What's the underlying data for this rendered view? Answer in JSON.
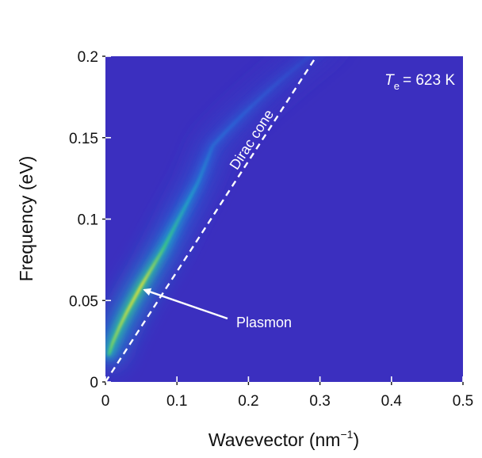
{
  "chart_data": {
    "type": "heatmap",
    "title": "",
    "xlabel": "Wavevector (nm",
    "xlabel_sup": "−1",
    "xlabel_end": ")",
    "ylabel": "Frequency (eV)",
    "xlim": [
      0,
      0.5
    ],
    "ylim": [
      0,
      0.2
    ],
    "x_ticks": [
      0,
      0.1,
      0.2,
      0.3,
      0.4,
      0.5
    ],
    "x_tick_labels": [
      "0",
      "0.1",
      "0.2",
      "0.3",
      "0.4",
      "0.5"
    ],
    "y_ticks": [
      0,
      0.05,
      0.1,
      0.15,
      0.2
    ],
    "y_tick_labels": [
      "0",
      "0.05",
      "0.1",
      "0.15",
      "0.2"
    ],
    "colormap": [
      "#3b2fbf",
      "#2b63d6",
      "#1fa2c9",
      "#3fce7a",
      "#f0e530"
    ],
    "background_color": "#3b2fbf",
    "temperature_label": {
      "symbol": "T",
      "subscript": "e",
      "value": "= 623 K"
    },
    "plasmon_dispersion": {
      "name": "Plasmon",
      "relation": "omega proportional to sqrt(q)",
      "x": [
        0.005,
        0.01,
        0.02,
        0.03,
        0.05,
        0.08,
        0.1,
        0.13,
        0.15
      ],
      "y": [
        0.017,
        0.024,
        0.034,
        0.043,
        0.059,
        0.081,
        0.098,
        0.123,
        0.145
      ],
      "intensity": [
        0.75,
        0.85,
        0.9,
        0.95,
        1.0,
        0.78,
        0.62,
        0.42,
        0.3
      ]
    },
    "dirac_cone": {
      "name": "Dirac cone",
      "style": "dashed",
      "color": "#ffffff",
      "x": [
        0,
        0.295
      ],
      "y": [
        0,
        0.2
      ]
    },
    "annotations": [
      {
        "text": "Plasmon",
        "arrow_to": {
          "x": 0.05,
          "y": 0.058
        }
      },
      {
        "text": "Dirac cone",
        "along": "dirac_cone"
      }
    ]
  }
}
